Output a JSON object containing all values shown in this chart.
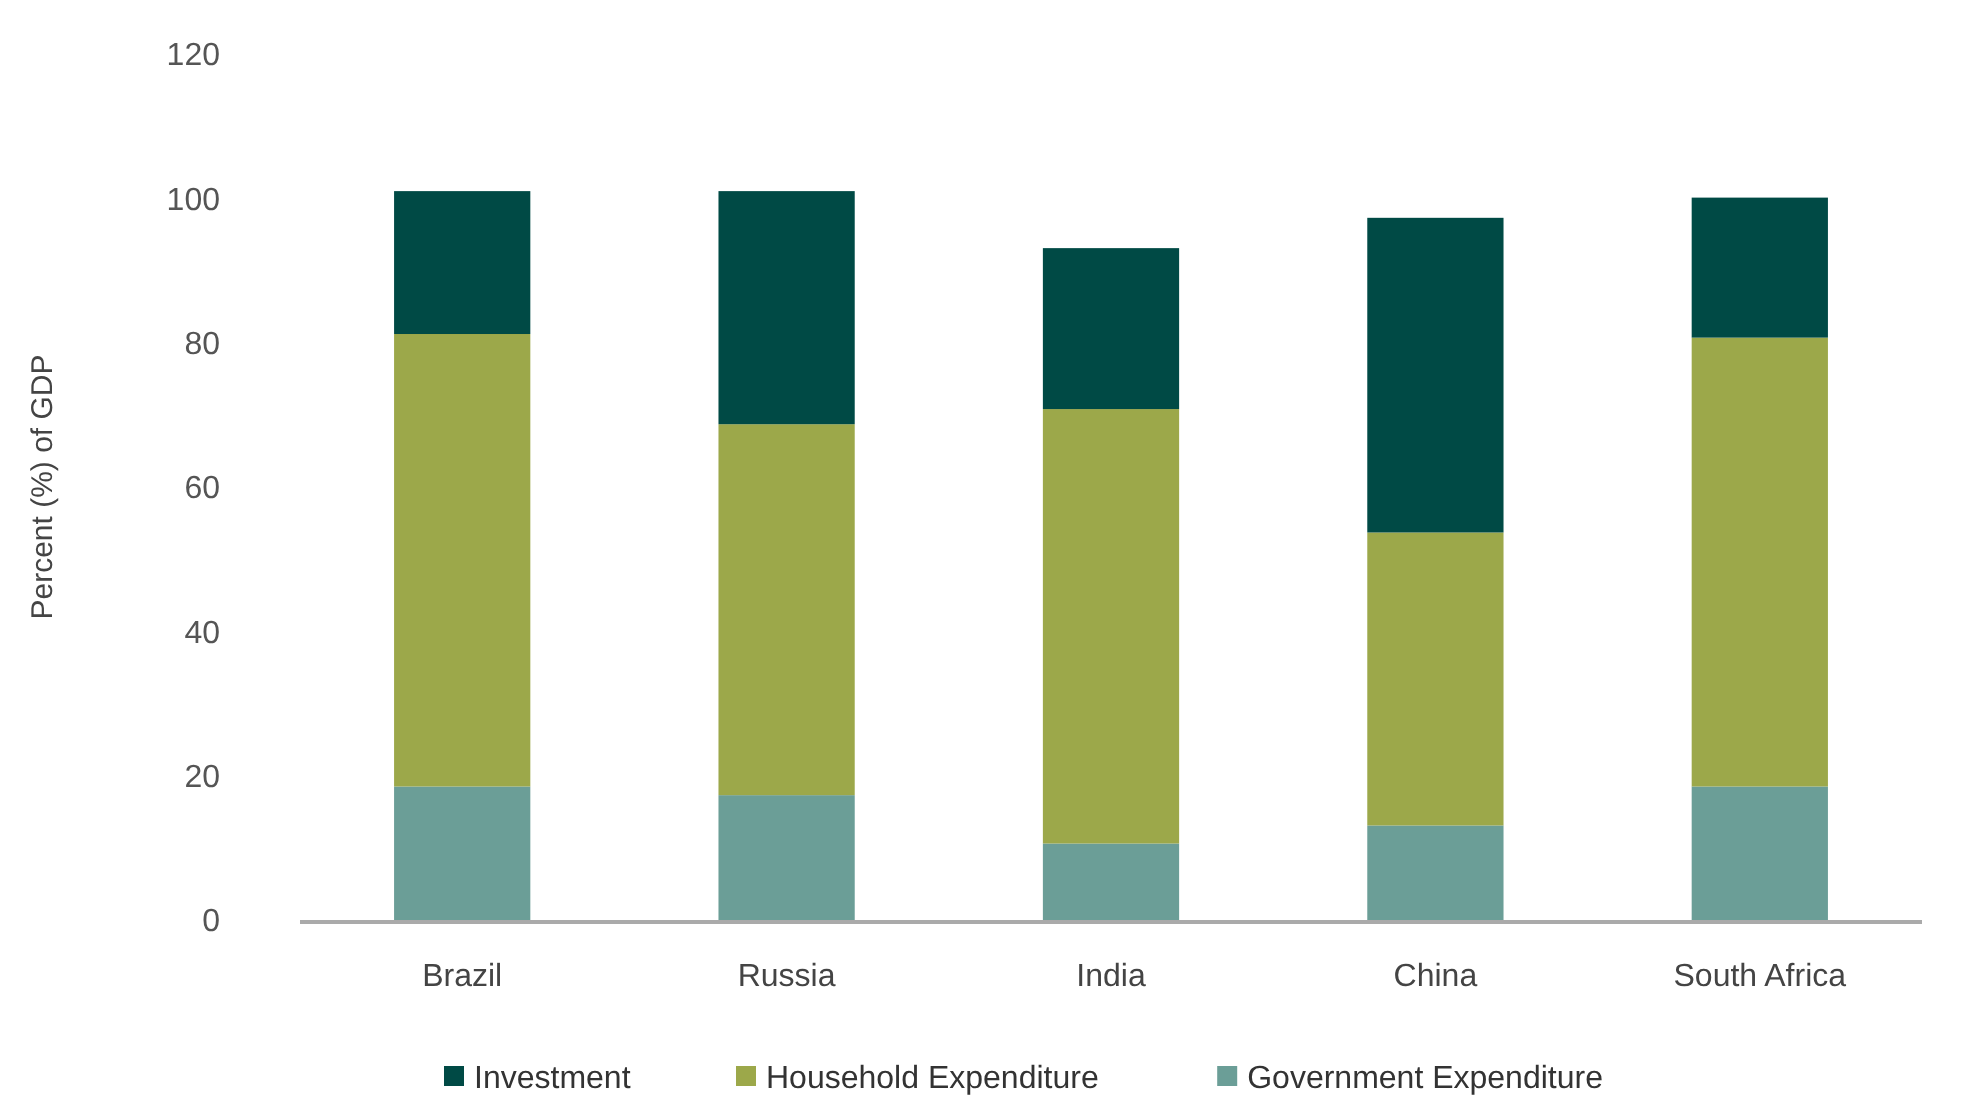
{
  "chart_data": {
    "type": "bar",
    "stacked": true,
    "ylabel": "Percent (%) of GDP",
    "categories": [
      "Brazil",
      "Russia",
      "India",
      "China",
      "South Africa"
    ],
    "series": [
      {
        "name": "Government Expenditure",
        "color": "#6b9e97",
        "values": [
          18.5,
          17.3,
          10.6,
          13.1,
          18.5
        ]
      },
      {
        "name": "Household Expenditure",
        "color": "#9ca84a",
        "values": [
          62.7,
          51.4,
          60.2,
          40.6,
          62.2
        ]
      },
      {
        "name": "Investment",
        "color": "#004a45",
        "values": [
          19.8,
          32.3,
          22.3,
          43.6,
          19.4
        ]
      }
    ],
    "ylim": [
      0,
      120
    ],
    "yticks": [
      0,
      20,
      40,
      60,
      80,
      100,
      120
    ],
    "grid": false,
    "legend": "bottom"
  }
}
